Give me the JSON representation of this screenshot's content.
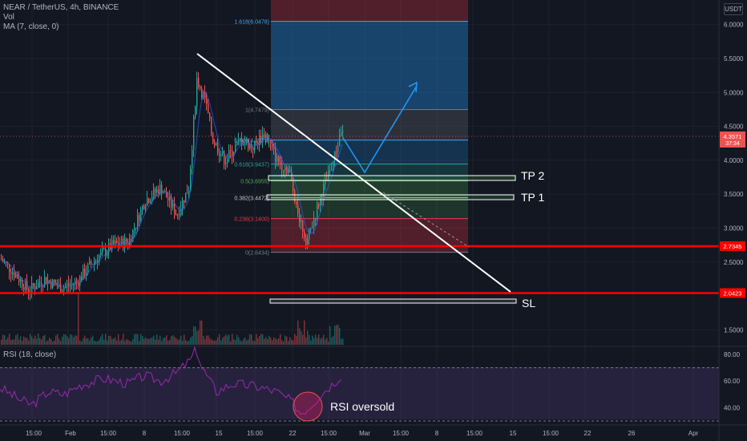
{
  "legend": {
    "symbol": "NEAR / TetherUS, 4h, BINANCE",
    "vol": "Vol",
    "ma": "MA (7, close, 0)",
    "rsi": "RSI (18, close)"
  },
  "currency": "USDT",
  "price_axis": {
    "ticks": [
      "6.0000",
      "5.5000",
      "5.0000",
      "4.5000",
      "4.0000",
      "3.5000",
      "3.0000",
      "2.5000",
      "1.5000"
    ],
    "tick_values": [
      6.0,
      5.5,
      5.0,
      4.5,
      4.0,
      3.5,
      3.0,
      2.5,
      1.5
    ]
  },
  "rsi_axis": {
    "ticks": [
      "80.00",
      "60.00",
      "40.00"
    ],
    "tick_values": [
      80,
      60,
      40
    ]
  },
  "time_axis": [
    "15:00",
    "Feb",
    "15:00",
    "8",
    "15:00",
    "15",
    "15:00",
    "22",
    "15:00",
    "Mar",
    "15:00",
    "8",
    "15:00",
    "15",
    "15:00",
    "22",
    "26",
    "Apr"
  ],
  "price_badges": {
    "current": "4.3571",
    "countdown": "37:34",
    "level_a": "2.7345",
    "level_b": "2.0423"
  },
  "fib_labels": [
    {
      "label": "1.618(6.0478)",
      "value": 6.0478,
      "color": "#42a5f5"
    },
    {
      "label": "1(4.7479)",
      "value": 4.7479,
      "color": "#787b86"
    },
    {
      "label": "0.786(4.2975)",
      "value": 4.2975,
      "color": "#42a5f5"
    },
    {
      "label": "0.618(3.9437)",
      "value": 3.9437,
      "color": "#26a69a"
    },
    {
      "label": "0.5(3.6955)",
      "value": 3.6955,
      "color": "#4caf50"
    },
    {
      "label": "0.382(3.4472)",
      "value": 3.4472,
      "color": "#c8c8c8"
    },
    {
      "label": "0.236(3.1400)",
      "value": 3.14,
      "color": "#f23645"
    },
    {
      "label": "0(2.6434)",
      "value": 2.6434,
      "color": "#787b86"
    }
  ],
  "annotations": {
    "tp2": "TP 2",
    "tp1": "TP 1",
    "sl": "SL",
    "rsi_note": "RSI oversold"
  },
  "colors": {
    "up": "#26a69a",
    "down": "#ef5350",
    "level_line": "#ff0000",
    "rsi_line": "#9c27b0",
    "arrow": "#2196f3"
  }
}
